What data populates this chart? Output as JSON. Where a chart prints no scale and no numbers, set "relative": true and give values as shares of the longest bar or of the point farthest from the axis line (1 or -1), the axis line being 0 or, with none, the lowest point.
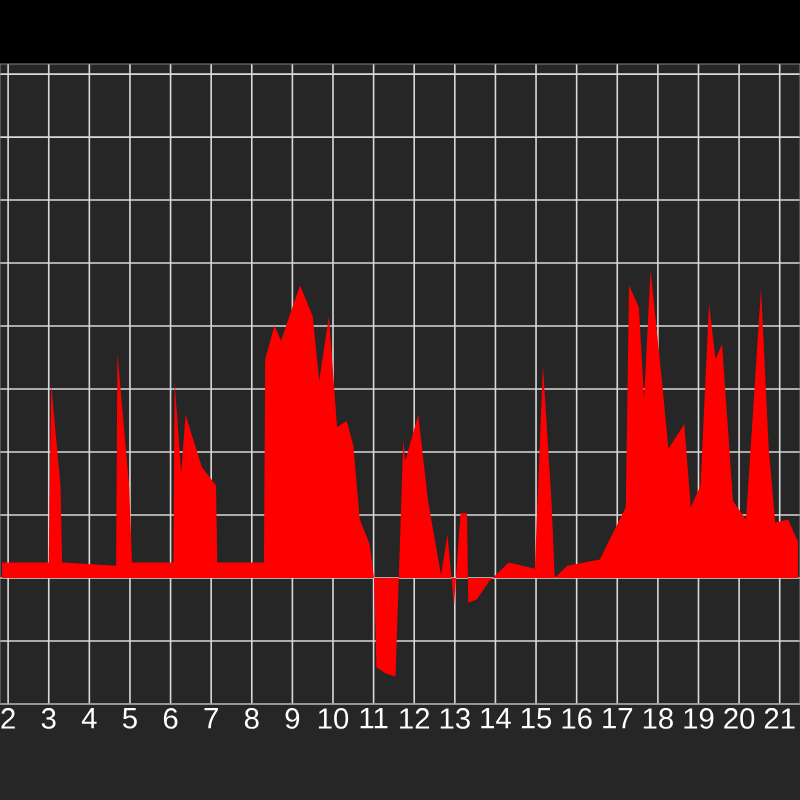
{
  "chart_data": {
    "type": "area",
    "relative": true,
    "color": "#ff0000",
    "grid": true,
    "tick_labels": "x",
    "xlim": [
      1.8,
      21.5
    ],
    "xticks": [
      2,
      3,
      4,
      5,
      6,
      7,
      8,
      9,
      10,
      11,
      12,
      13,
      14,
      15,
      16,
      17,
      18,
      19,
      20,
      21
    ],
    "x": [
      1.85,
      3.0,
      3.06,
      3.29,
      3.33,
      4.66,
      4.69,
      4.98,
      5.05,
      6.07,
      6.1,
      6.26,
      6.37,
      6.77,
      7.12,
      7.15,
      8.3,
      8.33,
      8.56,
      8.72,
      9.03,
      9.19,
      9.5,
      9.66,
      9.9,
      10.1,
      10.34,
      10.5,
      10.66,
      10.9,
      11.01,
      11.07,
      11.3,
      11.54,
      11.62,
      11.73,
      11.78,
      12.1,
      12.34,
      12.66,
      12.82,
      12.98,
      13.14,
      13.3,
      13.33,
      13.54,
      13.85,
      14.33,
      14.97,
      15.17,
      15.38,
      15.46,
      15.77,
      16.57,
      17.21,
      17.29,
      17.53,
      17.66,
      17.82,
      18.1,
      18.26,
      18.65,
      18.81,
      19.05,
      19.26,
      19.42,
      19.58,
      19.85,
      20.17,
      20.54,
      20.73,
      20.89,
      21.21,
      21.37,
      21.45
    ],
    "values": [
      0.05,
      0.05,
      0.63,
      0.3,
      0.05,
      0.04,
      0.73,
      0.3,
      0.05,
      0.05,
      0.64,
      0.34,
      0.53,
      0.36,
      0.3,
      0.05,
      0.05,
      0.71,
      0.82,
      0.77,
      0.89,
      0.95,
      0.85,
      0.64,
      0.85,
      0.49,
      0.51,
      0.43,
      0.19,
      0.11,
      0,
      -0.29,
      -0.31,
      -0.32,
      0,
      0.45,
      0.38,
      0.53,
      0.25,
      0.01,
      0.14,
      -0.09,
      0.21,
      0.21,
      -0.08,
      -0.07,
      -0.01,
      0.05,
      0.03,
      0.69,
      0.25,
      0,
      0.04,
      0.06,
      0.23,
      0.95,
      0.88,
      0.58,
      1,
      0.64,
      0.42,
      0.5,
      0.23,
      0.3,
      0.89,
      0.71,
      0.76,
      0.25,
      0.19,
      0.94,
      0.42,
      0.18,
      0.19,
      0.14,
      0.12
    ]
  }
}
